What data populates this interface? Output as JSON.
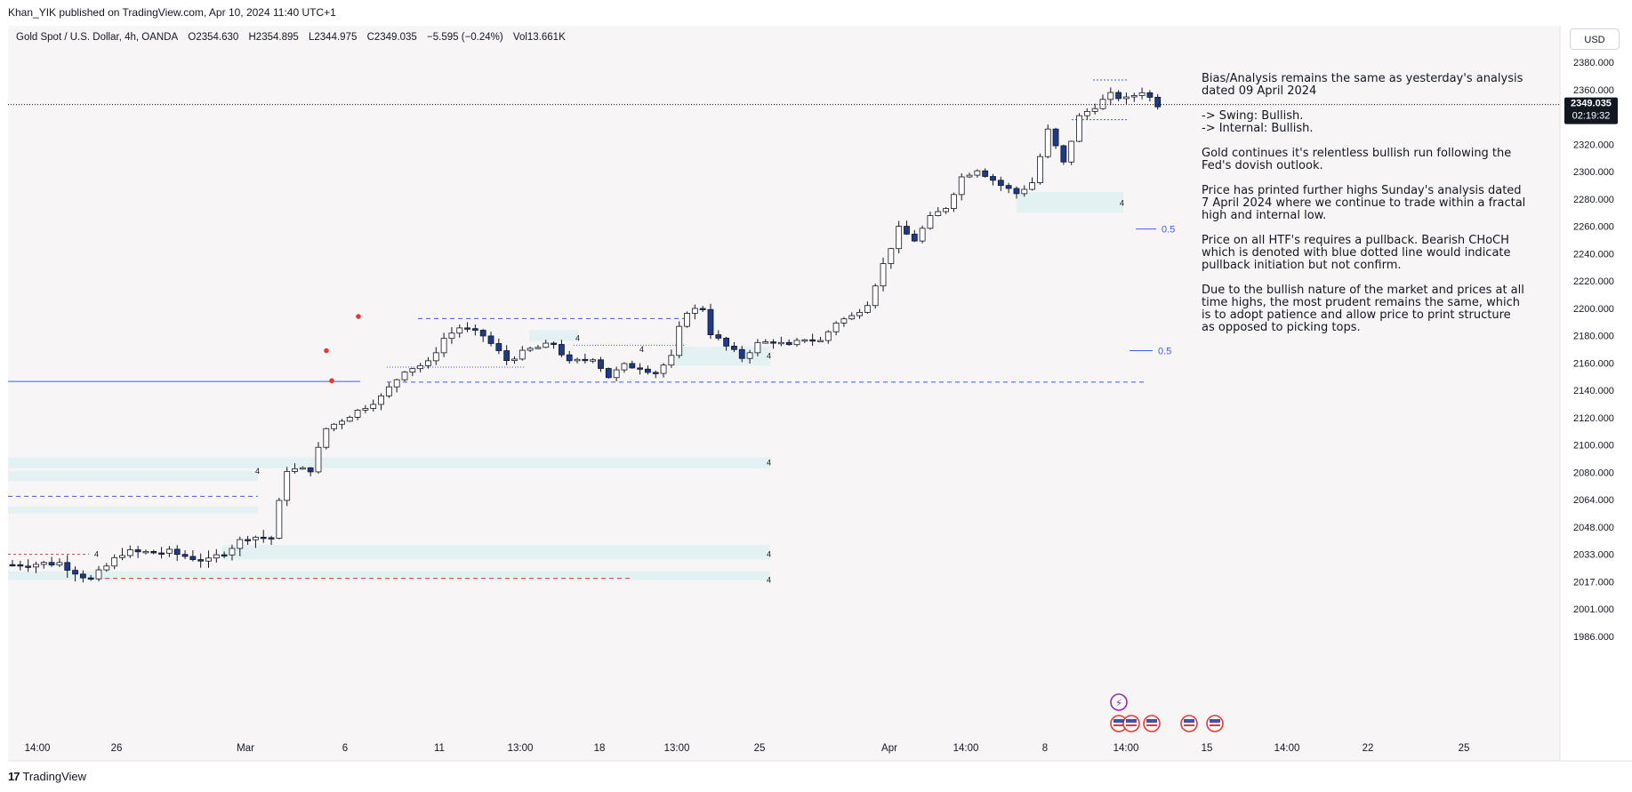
{
  "publish_line": "Khan_YIK published on TradingView.com, Apr 10, 2024 11:40 UTC+1",
  "legend": {
    "symbol": "Gold Spot / U.S. Dollar, 4h, OANDA",
    "open": "O2354.630",
    "high": "H2354.895",
    "low": "L2344.975",
    "close": "C2349.035",
    "change": "−5.595 (−0.24%)",
    "volume": "Vol13.661K"
  },
  "currency": "USD",
  "price_tag": {
    "price": "2349.035",
    "countdown": "02:19:32"
  },
  "brand": "TradingView",
  "analysis": {
    "p1": "Bias/Analysis remains the same as yesterday's analysis dated 09 April 2024",
    "p2a": "-> Swing:  Bullish.",
    "p2b": "-> Internal:  Bullish.",
    "p3": "Gold continues it's relentless bullish run following the Fed's dovish outlook.",
    "p4": "Price has printed further highs Sunday's analysis dated 7 April 2024 where we continue to trade within a fractal high and internal low.",
    "p5": "Price on all HTF's requires a pullback.  Bearish CHoCH which is denoted with blue dotted line would indicate pullback initiation but not confirm.",
    "p6": "Due to the bullish nature of the market and prices at all time highs, the most prudent remains the same, which is to adopt patience and allow price to print structure as opposed to picking tops."
  },
  "chart_data": {
    "type": "candlestick",
    "title": "Gold Spot / U.S. Dollar, 4h, OANDA",
    "y_axis_labels": [
      "2380.000",
      "2360.000",
      "2340.000",
      "2320.000",
      "2300.000",
      "2280.000",
      "2260.000",
      "2240.000",
      "2220.000",
      "2200.000",
      "2180.000",
      "2160.000",
      "2140.000",
      "2120.000",
      "2100.000",
      "2080.000",
      "2064.000",
      "2048.000",
      "2033.000",
      "2017.000",
      "2001.000",
      "1986.000"
    ],
    "x_axis_labels": [
      "14:00",
      "26",
      "Mar",
      "6",
      "11",
      "13:00",
      "18",
      "13:00",
      "25",
      "Apr",
      "14:00",
      "8",
      "14:00",
      "15",
      "14:00",
      "22",
      "25"
    ],
    "key_path": [
      [
        0,
        2027
      ],
      [
        6,
        2028
      ],
      [
        10,
        2018
      ],
      [
        14,
        2034
      ],
      [
        20,
        2034
      ],
      [
        25,
        2029
      ],
      [
        30,
        2043
      ],
      [
        33,
        2042
      ],
      [
        35,
        2082
      ],
      [
        38,
        2082
      ],
      [
        40,
        2112
      ],
      [
        44,
        2125
      ],
      [
        47,
        2135
      ],
      [
        50,
        2155
      ],
      [
        53,
        2160
      ],
      [
        55,
        2178
      ],
      [
        57,
        2186
      ],
      [
        60,
        2180
      ],
      [
        63,
        2162
      ],
      [
        66,
        2170
      ],
      [
        69,
        2174
      ],
      [
        71,
        2160
      ],
      [
        74,
        2164
      ],
      [
        76,
        2150
      ],
      [
        78,
        2158
      ],
      [
        80,
        2157
      ],
      [
        82,
        2153
      ],
      [
        84,
        2164
      ],
      [
        85,
        2185
      ],
      [
        86,
        2198
      ],
      [
        88,
        2200
      ],
      [
        89,
        2182
      ],
      [
        91,
        2172
      ],
      [
        93,
        2164
      ],
      [
        95,
        2174
      ],
      [
        97,
        2176
      ],
      [
        99,
        2172
      ],
      [
        101,
        2178
      ],
      [
        103,
        2176
      ],
      [
        105,
        2190
      ],
      [
        107,
        2194
      ],
      [
        109,
        2204
      ],
      [
        111,
        2232
      ],
      [
        113,
        2258
      ],
      [
        115,
        2250
      ],
      [
        117,
        2266
      ],
      [
        119,
        2274
      ],
      [
        121,
        2296
      ],
      [
        123,
        2302
      ],
      [
        126,
        2290
      ],
      [
        128,
        2284
      ],
      [
        130,
        2292
      ],
      [
        132,
        2330
      ],
      [
        134,
        2306
      ],
      [
        136,
        2340
      ],
      [
        138,
        2348
      ],
      [
        140,
        2356
      ],
      [
        142,
        2353
      ],
      [
        144,
        2359
      ],
      [
        146,
        2349
      ]
    ],
    "price_range": [
      1986,
      2388
    ],
    "levels": [
      {
        "label": "2192.5 dashed blue",
        "price": 2192.5
      },
      {
        "label": "2146 dashed blue",
        "price": 2146
      },
      {
        "label": "2019 dashed red",
        "price": 2019
      }
    ],
    "fib_labels": [
      "0.5",
      "0.5"
    ],
    "zone_label": "4",
    "last_price": 2349.035
  }
}
